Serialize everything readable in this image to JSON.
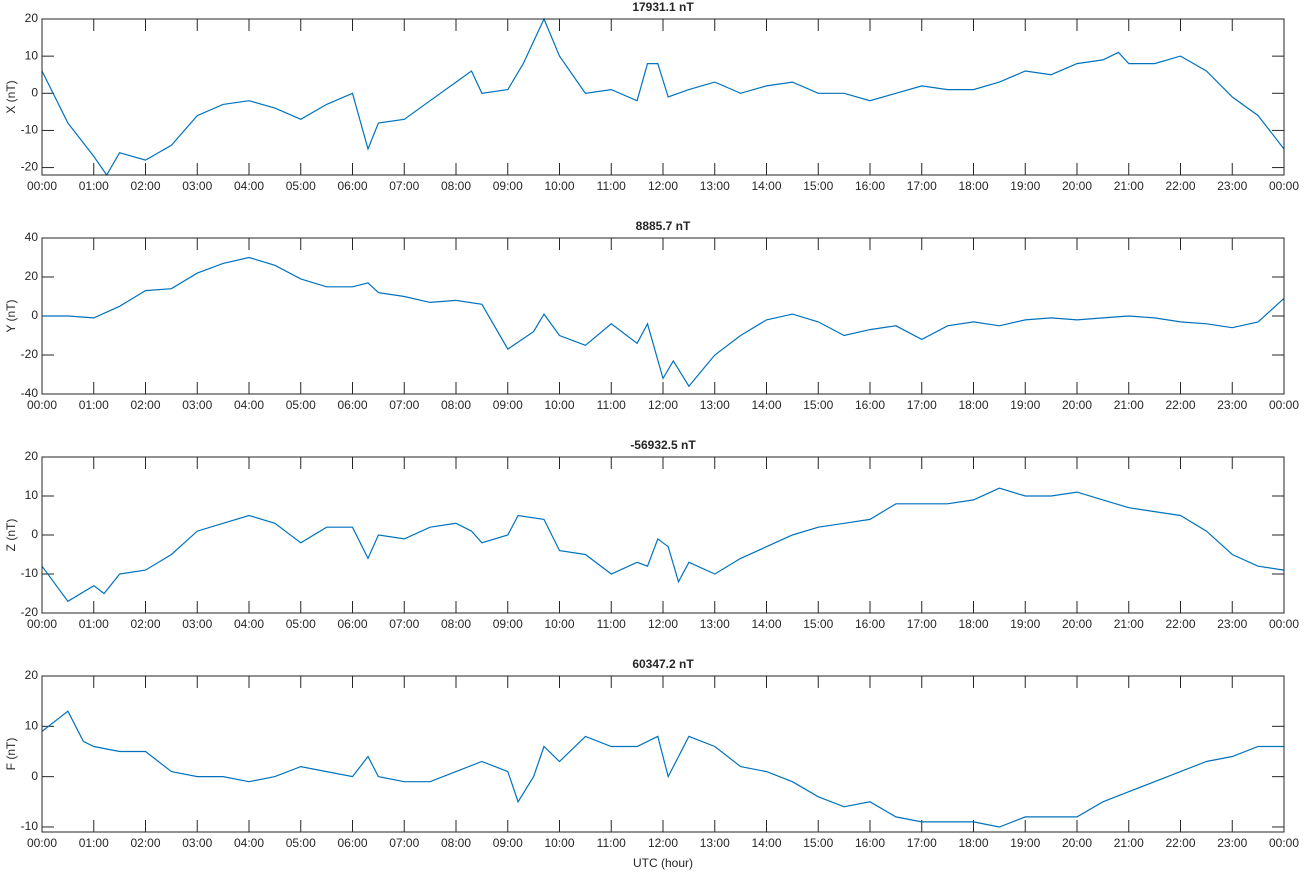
{
  "chart_data": [
    {
      "type": "line",
      "title": "17931.1 nT",
      "y_label": "X (nT)",
      "x": [
        0,
        0.5,
        1,
        1.25,
        1.5,
        2,
        2.5,
        3,
        3.5,
        4,
        4.5,
        5,
        5.5,
        6,
        6.3,
        6.5,
        7,
        7.5,
        8,
        8.3,
        8.5,
        9,
        9.3,
        9.7,
        10,
        10.5,
        11,
        11.5,
        11.7,
        11.9,
        12.1,
        12.5,
        13,
        13.5,
        14,
        14.5,
        15,
        15.5,
        16,
        16.5,
        17,
        17.5,
        18,
        18.5,
        19,
        19.5,
        20,
        20.5,
        20.8,
        21,
        21.5,
        22,
        22.5,
        23,
        23.5,
        24
      ],
      "series": [
        {
          "name": "X",
          "color": "#0072bd",
          "values": [
            6,
            -8,
            -17,
            -22,
            -16,
            -18,
            -14,
            -6,
            -3,
            -2,
            -4,
            -7,
            -3,
            0,
            -15,
            -8,
            -7,
            -2,
            3,
            6,
            0,
            1,
            8,
            20,
            10,
            0,
            1,
            -2,
            8,
            8,
            -1,
            1,
            3,
            0,
            2,
            3,
            0,
            0,
            -2,
            0,
            2,
            1,
            1,
            3,
            6,
            5,
            8,
            9,
            11,
            8,
            8,
            10,
            6,
            -1,
            -6,
            -15
          ]
        }
      ],
      "xlim": [
        0,
        24
      ],
      "ylim": [
        -22,
        20
      ],
      "yticks": [
        -20,
        -10,
        0,
        10,
        20
      ],
      "xticks": [
        {
          "value": 0,
          "label": "00:00"
        },
        {
          "value": 1,
          "label": "01:00"
        },
        {
          "value": 2,
          "label": "02:00"
        },
        {
          "value": 3,
          "label": "03:00"
        },
        {
          "value": 4,
          "label": "04:00"
        },
        {
          "value": 5,
          "label": "05:00"
        },
        {
          "value": 6,
          "label": "06:00"
        },
        {
          "value": 7,
          "label": "07:00"
        },
        {
          "value": 8,
          "label": "08:00"
        },
        {
          "value": 9,
          "label": "09:00"
        },
        {
          "value": 10,
          "label": "10:00"
        },
        {
          "value": 11,
          "label": "11:00"
        },
        {
          "value": 12,
          "label": "12:00"
        },
        {
          "value": 13,
          "label": "13:00"
        },
        {
          "value": 14,
          "label": "14:00"
        },
        {
          "value": 15,
          "label": "15:00"
        },
        {
          "value": 16,
          "label": "16:00"
        },
        {
          "value": 17,
          "label": "17:00"
        },
        {
          "value": 18,
          "label": "18:00"
        },
        {
          "value": 19,
          "label": "19:00"
        },
        {
          "value": 20,
          "label": "20:00"
        },
        {
          "value": 21,
          "label": "21:00"
        },
        {
          "value": 22,
          "label": "22:00"
        },
        {
          "value": 23,
          "label": "23:00"
        },
        {
          "value": 24,
          "label": "00:00"
        }
      ]
    },
    {
      "type": "line",
      "title": "8885.7 nT",
      "y_label": "Y (nT)",
      "x": [
        0,
        0.5,
        1,
        1.5,
        2,
        2.5,
        3,
        3.5,
        4,
        4.5,
        5,
        5.5,
        6,
        6.3,
        6.5,
        7,
        7.5,
        8,
        8.5,
        9,
        9.5,
        9.7,
        10,
        10.5,
        11,
        11.5,
        11.7,
        12,
        12.2,
        12.5,
        13,
        13.5,
        14,
        14.5,
        15,
        15.5,
        16,
        16.5,
        17,
        17.5,
        18,
        18.5,
        19,
        19.5,
        20,
        20.5,
        21,
        21.5,
        22,
        22.5,
        23,
        23.5,
        24
      ],
      "series": [
        {
          "name": "Y",
          "color": "#0072bd",
          "values": [
            0,
            0,
            -1,
            5,
            13,
            14,
            22,
            27,
            30,
            26,
            19,
            15,
            15,
            17,
            12,
            10,
            7,
            8,
            6,
            -17,
            -8,
            1,
            -10,
            -15,
            -4,
            -14,
            -4,
            -32,
            -23,
            -36,
            -20,
            -10,
            -2,
            1,
            -3,
            -10,
            -7,
            -5,
            -12,
            -5,
            -3,
            -5,
            -2,
            -1,
            -2,
            -1,
            0,
            -1,
            -3,
            -4,
            -6,
            -3,
            9
          ]
        }
      ],
      "xlim": [
        0,
        24
      ],
      "ylim": [
        -40,
        40
      ],
      "yticks": [
        -40,
        -20,
        0,
        20,
        40
      ],
      "xticks": [
        {
          "value": 0,
          "label": "00:00"
        },
        {
          "value": 1,
          "label": "01:00"
        },
        {
          "value": 2,
          "label": "02:00"
        },
        {
          "value": 3,
          "label": "03:00"
        },
        {
          "value": 4,
          "label": "04:00"
        },
        {
          "value": 5,
          "label": "05:00"
        },
        {
          "value": 6,
          "label": "06:00"
        },
        {
          "value": 7,
          "label": "07:00"
        },
        {
          "value": 8,
          "label": "08:00"
        },
        {
          "value": 9,
          "label": "09:00"
        },
        {
          "value": 10,
          "label": "10:00"
        },
        {
          "value": 11,
          "label": "11:00"
        },
        {
          "value": 12,
          "label": "12:00"
        },
        {
          "value": 13,
          "label": "13:00"
        },
        {
          "value": 14,
          "label": "14:00"
        },
        {
          "value": 15,
          "label": "15:00"
        },
        {
          "value": 16,
          "label": "16:00"
        },
        {
          "value": 17,
          "label": "17:00"
        },
        {
          "value": 18,
          "label": "18:00"
        },
        {
          "value": 19,
          "label": "19:00"
        },
        {
          "value": 20,
          "label": "20:00"
        },
        {
          "value": 21,
          "label": "21:00"
        },
        {
          "value": 22,
          "label": "22:00"
        },
        {
          "value": 23,
          "label": "23:00"
        },
        {
          "value": 24,
          "label": "00:00"
        }
      ]
    },
    {
      "type": "line",
      "title": "-56932.5 nT",
      "y_label": "Z (nT)",
      "x": [
        0,
        0.5,
        1,
        1.2,
        1.5,
        2,
        2.5,
        3,
        3.5,
        4,
        4.5,
        5,
        5.5,
        6,
        6.3,
        6.5,
        7,
        7.5,
        8,
        8.3,
        8.5,
        9,
        9.2,
        9.7,
        10,
        10.5,
        11,
        11.5,
        11.7,
        11.9,
        12.1,
        12.3,
        12.5,
        13,
        13.5,
        14,
        14.5,
        15,
        15.5,
        16,
        16.5,
        17,
        17.5,
        18,
        18.5,
        19,
        19.5,
        20,
        20.5,
        21,
        21.5,
        22,
        22.5,
        23,
        23.5,
        24
      ],
      "series": [
        {
          "name": "Z",
          "color": "#0072bd",
          "values": [
            -8,
            -17,
            -13,
            -15,
            -10,
            -9,
            -5,
            1,
            3,
            5,
            3,
            -2,
            2,
            2,
            -6,
            0,
            -1,
            2,
            3,
            1,
            -2,
            0,
            5,
            4,
            -4,
            -5,
            -10,
            -7,
            -8,
            -1,
            -3,
            -12,
            -7,
            -10,
            -6,
            -3,
            0,
            2,
            3,
            4,
            8,
            8,
            8,
            9,
            12,
            10,
            10,
            11,
            9,
            7,
            6,
            5,
            1,
            -5,
            -8,
            -9
          ]
        }
      ],
      "xlim": [
        0,
        24
      ],
      "ylim": [
        -20,
        20
      ],
      "yticks": [
        -20,
        -10,
        0,
        10,
        20
      ],
      "xticks": [
        {
          "value": 0,
          "label": "00:00"
        },
        {
          "value": 1,
          "label": "01:00"
        },
        {
          "value": 2,
          "label": "02:00"
        },
        {
          "value": 3,
          "label": "03:00"
        },
        {
          "value": 4,
          "label": "04:00"
        },
        {
          "value": 5,
          "label": "05:00"
        },
        {
          "value": 6,
          "label": "06:00"
        },
        {
          "value": 7,
          "label": "07:00"
        },
        {
          "value": 8,
          "label": "08:00"
        },
        {
          "value": 9,
          "label": "09:00"
        },
        {
          "value": 10,
          "label": "10:00"
        },
        {
          "value": 11,
          "label": "11:00"
        },
        {
          "value": 12,
          "label": "12:00"
        },
        {
          "value": 13,
          "label": "13:00"
        },
        {
          "value": 14,
          "label": "14:00"
        },
        {
          "value": 15,
          "label": "15:00"
        },
        {
          "value": 16,
          "label": "16:00"
        },
        {
          "value": 17,
          "label": "17:00"
        },
        {
          "value": 18,
          "label": "18:00"
        },
        {
          "value": 19,
          "label": "19:00"
        },
        {
          "value": 20,
          "label": "20:00"
        },
        {
          "value": 21,
          "label": "21:00"
        },
        {
          "value": 22,
          "label": "22:00"
        },
        {
          "value": 23,
          "label": "23:00"
        },
        {
          "value": 24,
          "label": "00:00"
        }
      ]
    },
    {
      "type": "line",
      "title": "60347.2 nT",
      "y_label": "F (nT)",
      "x_label": "UTC (hour)",
      "x": [
        0,
        0.5,
        0.8,
        1,
        1.5,
        2,
        2.5,
        3,
        3.5,
        4,
        4.5,
        5,
        5.5,
        6,
        6.3,
        6.5,
        7,
        7.5,
        8,
        8.5,
        9,
        9.2,
        9.5,
        9.7,
        10,
        10.5,
        11,
        11.5,
        11.9,
        12.1,
        12.5,
        13,
        13.5,
        14,
        14.5,
        15,
        15.5,
        16,
        16.5,
        17,
        17.5,
        18,
        18.5,
        19,
        19.5,
        20,
        20.5,
        21,
        21.5,
        22,
        22.5,
        23,
        23.5,
        24
      ],
      "series": [
        {
          "name": "F",
          "color": "#0072bd",
          "values": [
            9,
            13,
            7,
            6,
            5,
            5,
            1,
            0,
            0,
            -1,
            0,
            2,
            1,
            0,
            4,
            0,
            -1,
            -1,
            1,
            3,
            1,
            -5,
            0,
            6,
            3,
            8,
            6,
            6,
            8,
            0,
            8,
            6,
            2,
            1,
            -1,
            -4,
            -6,
            -5,
            -8,
            -9,
            -9,
            -9,
            -10,
            -8,
            -8,
            -8,
            -5,
            -3,
            -1,
            1,
            3,
            4,
            6,
            6
          ]
        }
      ],
      "xlim": [
        0,
        24
      ],
      "ylim": [
        -11,
        20
      ],
      "yticks": [
        -10,
        0,
        10,
        20
      ],
      "xticks": [
        {
          "value": 0,
          "label": "00:00"
        },
        {
          "value": 1,
          "label": "01:00"
        },
        {
          "value": 2,
          "label": "02:00"
        },
        {
          "value": 3,
          "label": "03:00"
        },
        {
          "value": 4,
          "label": "04:00"
        },
        {
          "value": 5,
          "label": "05:00"
        },
        {
          "value": 6,
          "label": "06:00"
        },
        {
          "value": 7,
          "label": "07:00"
        },
        {
          "value": 8,
          "label": "08:00"
        },
        {
          "value": 9,
          "label": "09:00"
        },
        {
          "value": 10,
          "label": "10:00"
        },
        {
          "value": 11,
          "label": "11:00"
        },
        {
          "value": 12,
          "label": "12:00"
        },
        {
          "value": 13,
          "label": "13:00"
        },
        {
          "value": 14,
          "label": "14:00"
        },
        {
          "value": 15,
          "label": "15:00"
        },
        {
          "value": 16,
          "label": "16:00"
        },
        {
          "value": 17,
          "label": "17:00"
        },
        {
          "value": 18,
          "label": "18:00"
        },
        {
          "value": 19,
          "label": "19:00"
        },
        {
          "value": 20,
          "label": "20:00"
        },
        {
          "value": 21,
          "label": "21:00"
        },
        {
          "value": 22,
          "label": "22:00"
        },
        {
          "value": 23,
          "label": "23:00"
        },
        {
          "value": 24,
          "label": "00:00"
        }
      ]
    }
  ]
}
